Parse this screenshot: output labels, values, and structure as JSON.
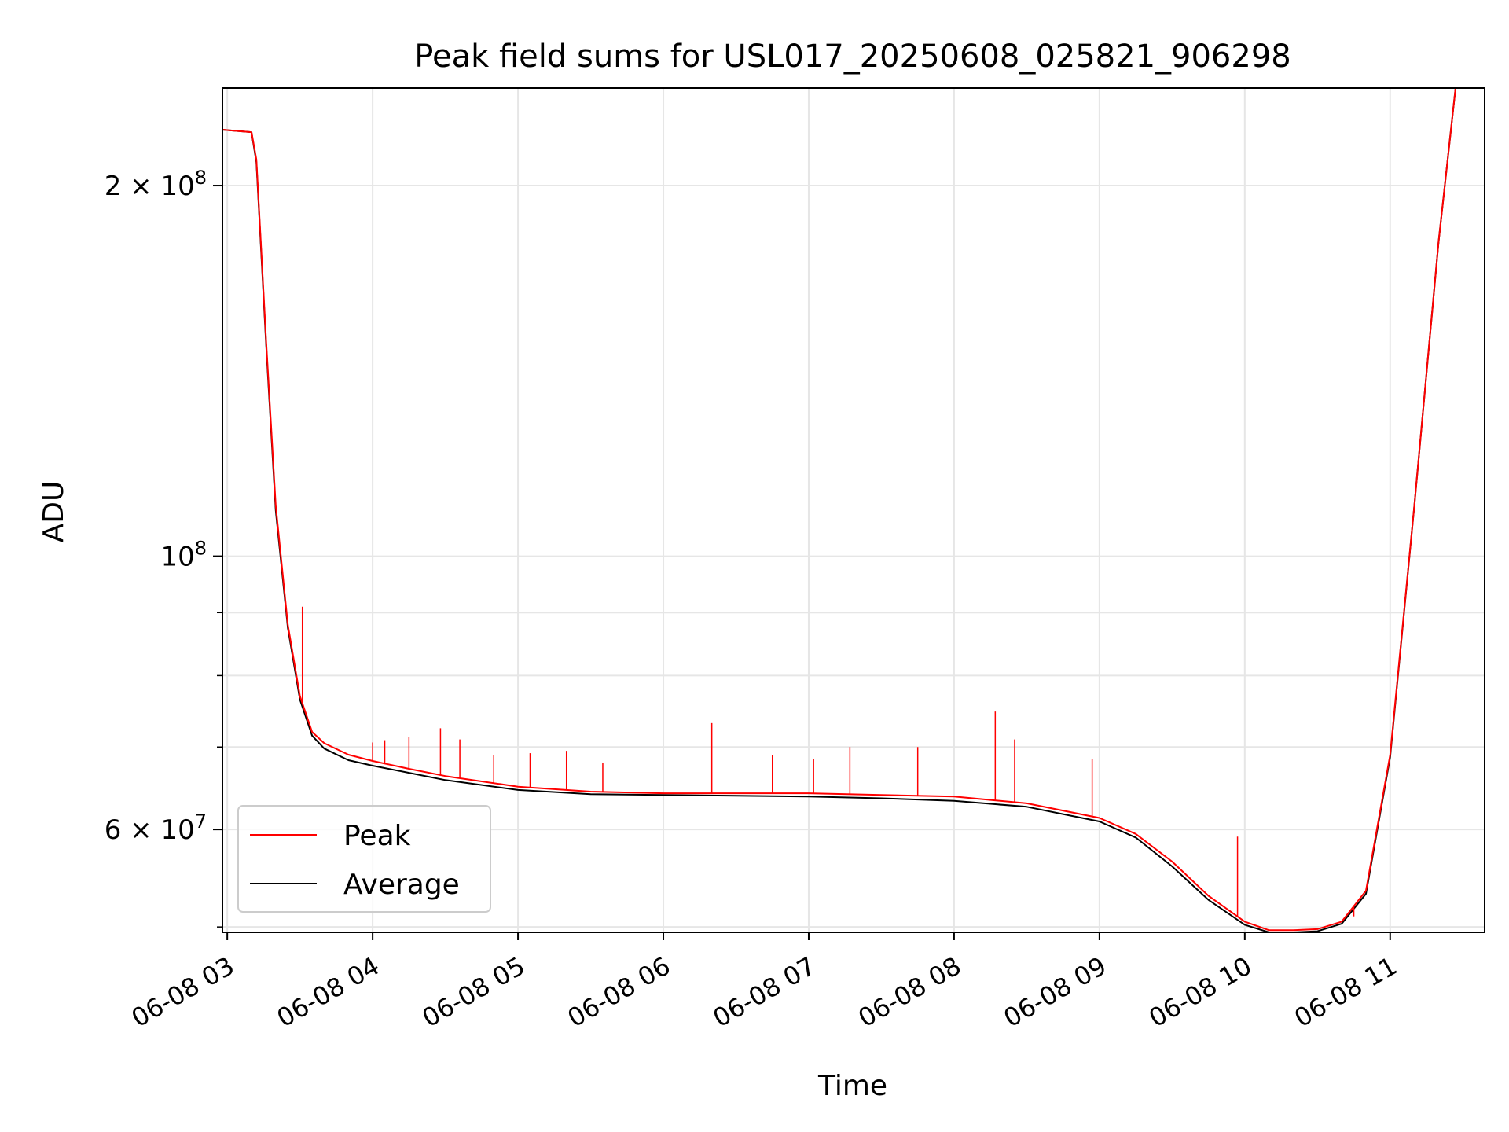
{
  "chart_data": {
    "type": "line",
    "title": "Peak field sums for USL017_20250608_025821_906298",
    "xlabel": "Time",
    "ylabel": "ADU",
    "yscale": "log",
    "grid": true,
    "legend_placement": "lower-left",
    "xlim": [
      "06-08 02:58",
      "06-08 11:39"
    ],
    "ylim": [
      49500000,
      240000000
    ],
    "x_ticks": [
      "06-08 03",
      "06-08 04",
      "06-08 05",
      "06-08 06",
      "06-08 07",
      "06-08 08",
      "06-08 09",
      "06-08 10",
      "06-08 11"
    ],
    "y_ticks": [
      {
        "value": 200000000,
        "base": "2 × 10",
        "exp": "8"
      },
      {
        "value": 100000000,
        "base": "10",
        "exp": "8"
      },
      {
        "value": 60000000,
        "base": "6 × 10",
        "exp": "7"
      }
    ],
    "y_minor_ticks": [
      50000000,
      70000000,
      80000000,
      90000000
    ],
    "series": [
      {
        "name": "Peak",
        "color": "#ff0000",
        "x": [
          "06-08 02:58",
          "06-08 03:10",
          "06-08 03:12",
          "06-08 03:16",
          "06-08 03:20",
          "06-08 03:25",
          "06-08 03:30",
          "06-08 03:35",
          "06-08 03:40",
          "06-08 03:50",
          "06-08 04:00",
          "06-08 04:15",
          "06-08 04:30",
          "06-08 05:00",
          "06-08 05:30",
          "06-08 06:00",
          "06-08 06:30",
          "06-08 07:00",
          "06-08 07:30",
          "06-08 08:00",
          "06-08 08:30",
          "06-08 09:00",
          "06-08 09:15",
          "06-08 09:30",
          "06-08 09:45",
          "06-08 10:00",
          "06-08 10:10",
          "06-08 10:20",
          "06-08 10:30",
          "06-08 10:40",
          "06-08 10:50",
          "06-08 11:00",
          "06-08 11:10",
          "06-08 11:20",
          "06-08 11:27"
        ],
        "y": [
          222000000,
          221000000,
          210000000,
          150000000,
          110000000,
          88000000,
          77000000,
          72000000,
          70500000,
          69000000,
          68200000,
          67200000,
          66300000,
          65000000,
          64400000,
          64200000,
          64200000,
          64200000,
          64000000,
          63800000,
          63000000,
          61300000,
          59500000,
          56500000,
          53000000,
          50500000,
          49700000,
          49700000,
          49800000,
          50500000,
          53500000,
          69000000,
          110000000,
          180000000,
          240000000
        ]
      },
      {
        "name": "Average",
        "color": "#000000",
        "x": [
          "06-08 02:58",
          "06-08 03:10",
          "06-08 03:12",
          "06-08 03:16",
          "06-08 03:20",
          "06-08 03:25",
          "06-08 03:30",
          "06-08 03:35",
          "06-08 03:40",
          "06-08 03:50",
          "06-08 04:00",
          "06-08 04:15",
          "06-08 04:30",
          "06-08 05:00",
          "06-08 05:30",
          "06-08 06:00",
          "06-08 06:30",
          "06-08 07:00",
          "06-08 07:30",
          "06-08 08:00",
          "06-08 08:30",
          "06-08 09:00",
          "06-08 09:15",
          "06-08 09:30",
          "06-08 09:45",
          "06-08 10:00",
          "06-08 10:10",
          "06-08 10:20",
          "06-08 10:30",
          "06-08 10:40",
          "06-08 10:50",
          "06-08 11:00",
          "06-08 11:10",
          "06-08 11:20",
          "06-08 11:27"
        ],
        "y": [
          222000000,
          221000000,
          209000000,
          149000000,
          109000000,
          87500000,
          76500000,
          71500000,
          69800000,
          68300000,
          67600000,
          66700000,
          65800000,
          64600000,
          64100000,
          64000000,
          63900000,
          63800000,
          63600000,
          63300000,
          62600000,
          60900000,
          59100000,
          56000000,
          52600000,
          50200000,
          49500000,
          49500000,
          49600000,
          50300000,
          53200000,
          68700000,
          110000000,
          180000000,
          240000000
        ]
      }
    ],
    "spikes": {
      "x": [
        "06-08 03:31",
        "06-08 04:00",
        "06-08 04:05",
        "06-08 04:15",
        "06-08 04:28",
        "06-08 04:36",
        "06-08 04:50",
        "06-08 05:05",
        "06-08 05:20",
        "06-08 05:35",
        "06-08 06:20",
        "06-08 06:45",
        "06-08 07:02",
        "06-08 07:17",
        "06-08 07:45",
        "06-08 08:17",
        "06-08 08:25",
        "06-08 08:57",
        "06-08 09:57",
        "06-08 10:45"
      ],
      "y": [
        91000000,
        70600000,
        70900000,
        71300000,
        72500000,
        71000000,
        69000000,
        69200000,
        69500000,
        68000000,
        73200000,
        69000000,
        68400000,
        70000000,
        70000000,
        74800000,
        71000000,
        68500000,
        59200000,
        51000000
      ]
    }
  }
}
